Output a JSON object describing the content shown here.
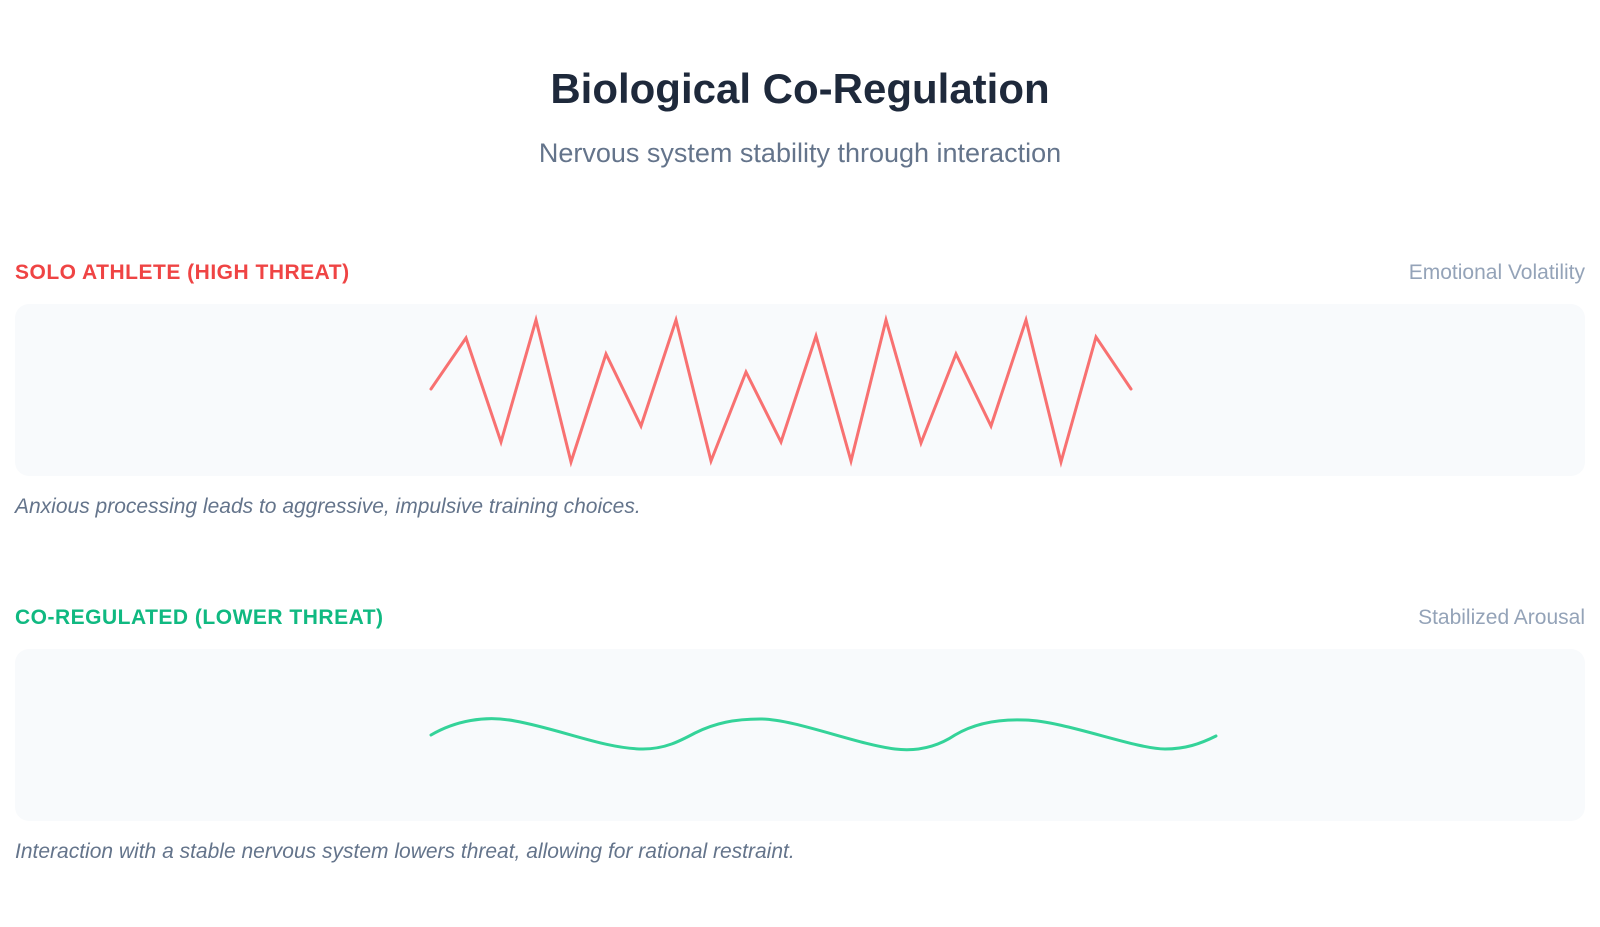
{
  "header": {
    "title": "Biological Co-Regulation",
    "subtitle": "Nervous system stability through interaction"
  },
  "sections": [
    {
      "label": "SOLO ATHLETE (HIGH THREAT)",
      "meta": "Emotional Volatility",
      "caption": "Anxious processing leads to aggressive, impulsive training choices.",
      "color": "#ef4444",
      "line_color": "#f87171"
    },
    {
      "label": "CO-REGULATED (LOWER THREAT)",
      "meta": "Stabilized Arousal",
      "caption": "Interaction with a stable nervous system lowers threat, allowing for rational restraint.",
      "color": "#10b981",
      "line_color": "#34d399"
    }
  ]
}
